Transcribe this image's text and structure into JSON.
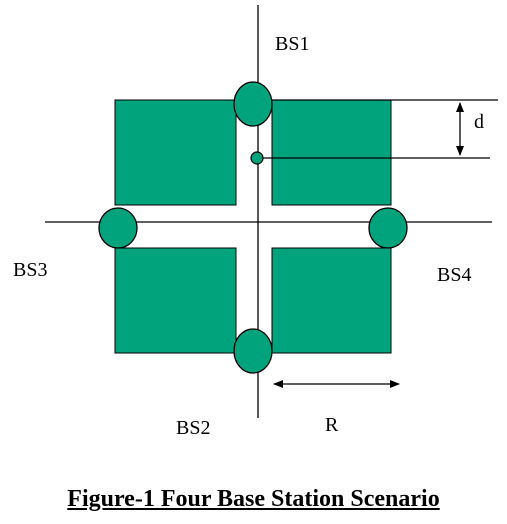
{
  "colors": {
    "block_fill": "#00A37C",
    "station_fill": "#00A37C",
    "line": "#000000"
  },
  "labels": {
    "bs1": "BS1",
    "bs2": "BS2",
    "bs3": "BS3",
    "bs4": "BS4",
    "d": "d",
    "r": "R"
  },
  "caption": "Figure-1 Four Base Station Scenario"
}
